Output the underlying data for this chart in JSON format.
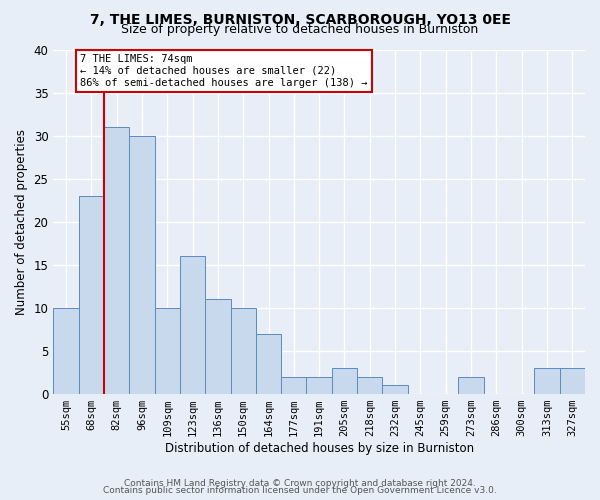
{
  "title1": "7, THE LIMES, BURNISTON, SCARBOROUGH, YO13 0EE",
  "title2": "Size of property relative to detached houses in Burniston",
  "xlabel": "Distribution of detached houses by size in Burniston",
  "ylabel": "Number of detached properties",
  "categories": [
    "55sqm",
    "68sqm",
    "82sqm",
    "96sqm",
    "109sqm",
    "123sqm",
    "136sqm",
    "150sqm",
    "164sqm",
    "177sqm",
    "191sqm",
    "205sqm",
    "218sqm",
    "232sqm",
    "245sqm",
    "259sqm",
    "273sqm",
    "286sqm",
    "300sqm",
    "313sqm",
    "327sqm"
  ],
  "values": [
    10,
    23,
    31,
    30,
    10,
    16,
    11,
    10,
    7,
    2,
    2,
    3,
    2,
    1,
    0,
    0,
    2,
    0,
    0,
    3,
    3
  ],
  "bar_color": "#c9d9ed",
  "bar_edge_color": "#5b8abf",
  "ylim": [
    0,
    40
  ],
  "yticks": [
    0,
    5,
    10,
    15,
    20,
    25,
    30,
    35,
    40
  ],
  "vline_x": 1.5,
  "vline_color": "#cc0000",
  "annotation_text": "7 THE LIMES: 74sqm\n← 14% of detached houses are smaller (22)\n86% of semi-detached houses are larger (138) →",
  "annotation_box_color": "#ffffff",
  "annotation_box_edge": "#cc0000",
  "footer1": "Contains HM Land Registry data © Crown copyright and database right 2024.",
  "footer2": "Contains public sector information licensed under the Open Government Licence v3.0.",
  "background_color": "#e8eef7",
  "plot_bg_color": "#e8eef7",
  "grid_color": "#ffffff",
  "title1_fontsize": 10,
  "title2_fontsize": 9,
  "ylabel_fontsize": 8.5,
  "xlabel_fontsize": 8.5,
  "tick_fontsize": 7.5,
  "ytick_fontsize": 8.5,
  "footer_fontsize": 6.5
}
